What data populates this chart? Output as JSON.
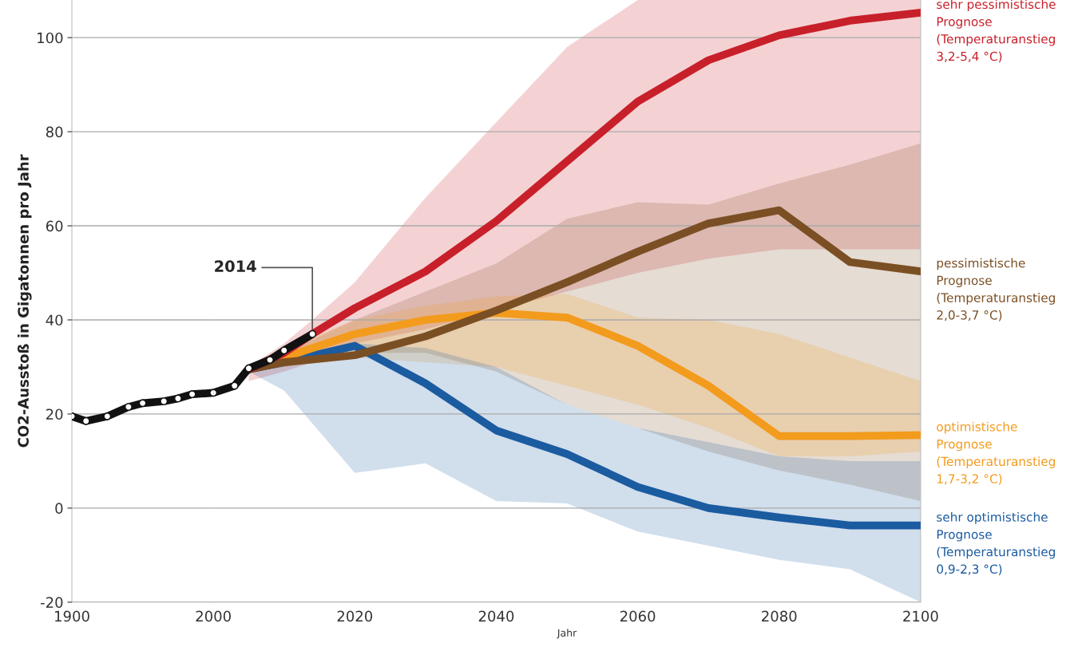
{
  "chart_data": [
    {
      "type": "line",
      "ylabel": "CO2-Ausstoß in Gigatonnen pro Jahr",
      "xlim": [
        1900,
        2000
      ],
      "xticks": [
        1900,
        2000
      ],
      "ylim": [
        -20,
        108
      ],
      "yticks": [
        -20,
        0,
        20,
        40,
        60,
        80,
        100
      ],
      "grid": "y",
      "legend": false,
      "series": [
        {
          "color": "#111111",
          "marker": "circle",
          "x": [
            1900,
            1910,
            1925,
            1940,
            1950,
            1965,
            1975,
            1985,
            2000
          ],
          "values": [
            19.5,
            18.5,
            19.5,
            21.5,
            22.3,
            22.7,
            23.3,
            24.2,
            24.5
          ]
        }
      ]
    },
    {
      "type": "line",
      "xlabel": "Jahr",
      "tick_labels": "x",
      "xlim": [
        2000,
        2100
      ],
      "xticks": [
        2020,
        2040,
        2060,
        2080,
        2100
      ],
      "ylim": [
        -20,
        108
      ],
      "yticks": [
        -20,
        0,
        20,
        40,
        60,
        80,
        100
      ],
      "grid": "y",
      "legend": false,
      "annotations": [
        {
          "text": "2014",
          "x": 2014,
          "y": 37
        }
      ],
      "series": [
        {
          "color": "#111111",
          "marker": "circle",
          "x": [
            2000,
            2003,
            2005,
            2008,
            2010,
            2014
          ],
          "values": [
            24.5,
            26,
            29.7,
            31.5,
            33.5,
            37
          ]
        },
        {
          "name": "sehr pessimistische\nPrognose\n(Temperaturanstieg\n3,2-5,4 °C)",
          "color": "#c8202a",
          "x": [
            2005,
            2010,
            2014,
            2020,
            2030,
            2040,
            2050,
            2060,
            2070,
            2080,
            2090,
            2100
          ],
          "values": [
            29.5,
            33,
            37,
            42.5,
            50.3,
            61,
            73.7,
            86.4,
            95.2,
            100.5,
            103.6,
            105.3
          ],
          "lower": [
            27,
            29,
            31,
            35,
            38,
            42,
            46,
            50,
            53,
            55,
            55,
            55
          ],
          "upper": [
            30,
            35,
            40,
            48,
            66,
            82,
            98,
            108,
            108,
            108,
            108,
            108
          ]
        },
        {
          "name": "pessimistische\nPrognose\n(Temperaturanstieg\n2,0-3,7 °C)",
          "color": "#7b4f24",
          "x": [
            2005,
            2010,
            2020,
            2030,
            2040,
            2050,
            2060,
            2070,
            2080,
            2090,
            2100
          ],
          "values": [
            29.5,
            31,
            32.5,
            36.5,
            42,
            48,
            54.5,
            60.5,
            63.3,
            52.3,
            50.3
          ],
          "lower": [
            29,
            30,
            33,
            33,
            29,
            22,
            17,
            12,
            8,
            5,
            1.5
          ],
          "upper": [
            30,
            33,
            40,
            46,
            52,
            61.5,
            65,
            64.5,
            69,
            73,
            77.5
          ]
        },
        {
          "name": "optimistische\nPrognose\n(Temperaturanstieg\n1,7-3,2 °C)",
          "color": "#f39b1c",
          "x": [
            2005,
            2010,
            2020,
            2030,
            2040,
            2050,
            2060,
            2070,
            2080,
            2090,
            2100
          ],
          "values": [
            29.5,
            32,
            37,
            40,
            41.5,
            40.5,
            34.5,
            26,
            15.3,
            15.3,
            15.5
          ],
          "lower": [
            29,
            30,
            32,
            31,
            30,
            26,
            22,
            17,
            11,
            11,
            12
          ],
          "upper": [
            30,
            34,
            40,
            43,
            45,
            45.5,
            40.5,
            40,
            37,
            32,
            27
          ]
        },
        {
          "name": "sehr optimistische\nPrognose\n(Temperaturanstieg\n0,9-2,3 °C)",
          "color": "#1b5ba0",
          "x": [
            2005,
            2010,
            2020,
            2030,
            2040,
            2050,
            2060,
            2070,
            2080,
            2090,
            2100
          ],
          "values": [
            29.5,
            31,
            34.5,
            26.5,
            16.5,
            11.5,
            4.5,
            0,
            -2,
            -3.7,
            -3.7
          ],
          "lower": [
            29,
            25,
            7.5,
            9.5,
            1.5,
            1,
            -5,
            -8,
            -11,
            -13,
            -20
          ],
          "upper": [
            30,
            32,
            35,
            34,
            30,
            22,
            17,
            14,
            11,
            10,
            10
          ]
        }
      ]
    }
  ]
}
